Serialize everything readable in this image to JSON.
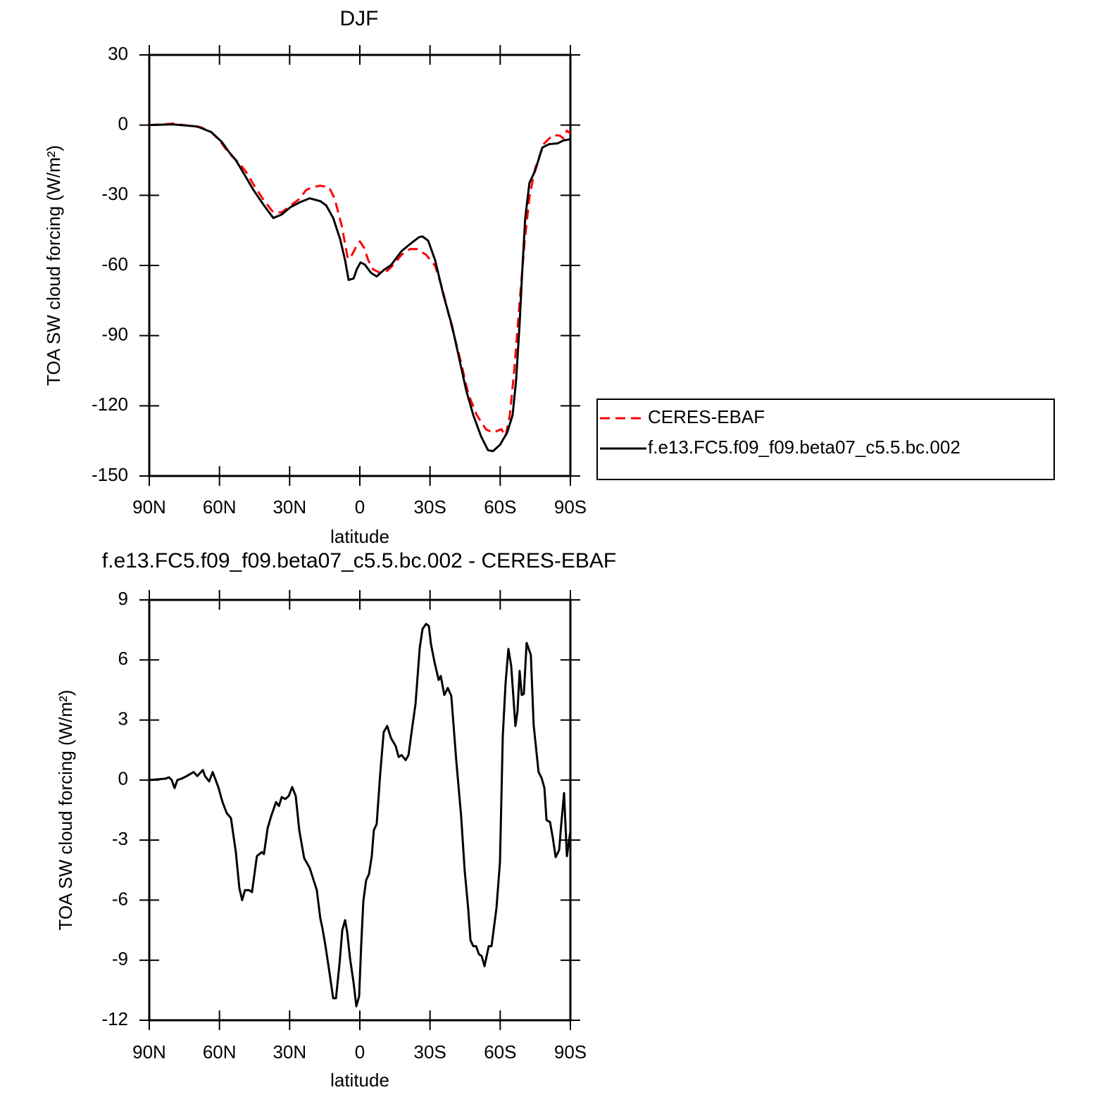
{
  "chart_data": [
    {
      "type": "line",
      "title": "DJF",
      "xlabel": "latitude",
      "ylabel": "TOA SW cloud forcing (W/m²)",
      "xlim": [
        90,
        -90
      ],
      "ylim": [
        -150,
        30
      ],
      "xticks": [
        {
          "value": 90,
          "label": "90N"
        },
        {
          "value": 60,
          "label": "60N"
        },
        {
          "value": 30,
          "label": "30N"
        },
        0,
        {
          "value": -30,
          "label": "30S"
        },
        {
          "value": -60,
          "label": "60S"
        },
        {
          "value": -90,
          "label": "90S"
        }
      ],
      "yticks": [
        -150,
        -120,
        -90,
        -60,
        -30,
        0,
        30
      ],
      "legend": "right",
      "series": [
        {
          "name": "CERES-EBAF",
          "color": "#ff0000",
          "dashed": true,
          "x": [
            90,
            80,
            68,
            63.5,
            59.9,
            56,
            51.5,
            48.5,
            45.5,
            41,
            37,
            33.4,
            29.5,
            25.9,
            22.9,
            19.9,
            16.9,
            13.2,
            10.8,
            7.8,
            5.1,
            3.3,
            1.5,
            0,
            -1.8,
            -3.6,
            -5.7,
            -8.7,
            -11.7,
            -14.8,
            -17.8,
            -21.4,
            -24.4,
            -28.3,
            -32.2,
            -35.2,
            -38.8,
            -42.5,
            -46.4,
            -50,
            -53.9,
            -56.9,
            -60.5,
            -62.3,
            -64.1,
            -65.9,
            -68.3,
            -70.4,
            -72.5,
            -74.9,
            -78.6,
            -82.5,
            -85.5,
            -87,
            -88.5,
            -90
          ],
          "values": [
            0,
            0.6,
            -0.9,
            -3,
            -6.6,
            -12,
            -16.3,
            -20.2,
            -25.3,
            -32.2,
            -37.3,
            -37.3,
            -34.3,
            -31.6,
            -27.7,
            -26.5,
            -25.9,
            -26.5,
            -31.3,
            -42.8,
            -57.2,
            -55.4,
            -51.8,
            -49.7,
            -52.4,
            -57.8,
            -61.7,
            -63.2,
            -62.3,
            -59.3,
            -55.4,
            -53,
            -53,
            -55.4,
            -60.2,
            -69.8,
            -84.3,
            -98.4,
            -115,
            -124,
            -130,
            -131.5,
            -130,
            -133,
            -124,
            -106,
            -75.8,
            -50.3,
            -30.7,
            -18.7,
            -8.1,
            -4.2,
            -4.5,
            -5.7,
            -2.4,
            -3.6
          ]
        },
        {
          "name": "f.e13.FC5.f09_f09.beta07_c5.5.bc.002",
          "color": "#000000",
          "dashed": false,
          "x": [
            90,
            80,
            69.5,
            63.5,
            59,
            56,
            53,
            50,
            45.5,
            41,
            37,
            33.4,
            29.8,
            25.9,
            21.4,
            16.9,
            14.4,
            11.4,
            8.4,
            6.3,
            4.8,
            2.7,
            1.2,
            -0.3,
            -2.1,
            -4.8,
            -7.2,
            -10.2,
            -13.3,
            -17.8,
            -21.4,
            -25.3,
            -26.8,
            -29.2,
            -32.2,
            -35.8,
            -39.4,
            -42.5,
            -45.5,
            -48.5,
            -51.8,
            -54.8,
            -56.9,
            -59.9,
            -62.9,
            -65.3,
            -66.8,
            -68.3,
            -69.5,
            -70.7,
            -72.5,
            -74.9,
            -78,
            -81,
            -84.6,
            -87,
            -90
          ],
          "values": [
            0,
            0.3,
            -0.6,
            -3,
            -7.2,
            -11.4,
            -15,
            -20,
            -27.7,
            -34.3,
            -39.7,
            -38.2,
            -35.2,
            -33.1,
            -31.3,
            -32.5,
            -34.3,
            -39.7,
            -48.8,
            -57.8,
            -66.2,
            -65.6,
            -61.4,
            -58.7,
            -59.6,
            -63.2,
            -64.7,
            -62,
            -59.9,
            -53.9,
            -50.9,
            -47.9,
            -47.6,
            -49.4,
            -57.8,
            -72.9,
            -85.8,
            -99.9,
            -113.5,
            -124,
            -133,
            -139,
            -139.4,
            -136.7,
            -131.6,
            -124,
            -109,
            -84.9,
            -60.8,
            -39.7,
            -24.7,
            -19.6,
            -9.6,
            -8.1,
            -7.8,
            -6.6,
            -6
          ]
        }
      ]
    },
    {
      "type": "line",
      "title": "f.e13.FC5.f09_f09.beta07_c5.5.bc.002 - CERES-EBAF",
      "xlabel": "latitude",
      "ylabel": "TOA SW cloud forcing (W/m²)",
      "xlim": [
        90,
        -90
      ],
      "ylim": [
        -12,
        9
      ],
      "xticks": [
        {
          "value": 90,
          "label": "90N"
        },
        {
          "value": 60,
          "label": "60N"
        },
        {
          "value": 30,
          "label": "30N"
        },
        0,
        {
          "value": -30,
          "label": "30S"
        },
        {
          "value": -60,
          "label": "60S"
        },
        {
          "value": -90,
          "label": "90S"
        }
      ],
      "yticks": [
        -12,
        -9,
        -6,
        -3,
        0,
        3,
        6,
        9
      ],
      "series": [
        {
          "color": "#000000",
          "dashed": false,
          "x": [
            90,
            83,
            81.6,
            80.4,
            79.2,
            78,
            76.2,
            74,
            71,
            69.5,
            67.1,
            66.2,
            64.4,
            62.9,
            60.5,
            58.7,
            56.9,
            55.1,
            53,
            51.5,
            50.3,
            49.1,
            47.3,
            46.1,
            44,
            41.9,
            41,
            39.4,
            37.9,
            35.8,
            34.6,
            33.4,
            31.9,
            30.4,
            28.9,
            27.4,
            25.9,
            23.8,
            21.4,
            18.4,
            16.9,
            16,
            14.8,
            13,
            11.4,
            10.2,
            8.7,
            7.5,
            6.3,
            5.4,
            4.2,
            2.7,
            1.5,
            0.3,
            -0.6,
            -1.5,
            -2.7,
            -3.9,
            -5.1,
            -6,
            -7.2,
            -8.7,
            -10.2,
            -11.7,
            -13.3,
            -15.3,
            -16.6,
            -17.8,
            -19.6,
            -20.8,
            -22.3,
            -23.8,
            -25.6,
            -26.8,
            -28.3,
            -29.5,
            -30.4,
            -31.9,
            -33.7,
            -34.6,
            -36.1,
            -37.6,
            -39.1,
            -41.2,
            -43.3,
            -44.8,
            -46.3,
            -47.3,
            -48.5,
            -49.7,
            -50.9,
            -52.1,
            -53.3,
            -55.1,
            -56.3,
            -58.4,
            -59.9,
            -61.1,
            -62.3,
            -63.5,
            -64.7,
            -66.5,
            -67.4,
            -68.3,
            -69.2,
            -70.1,
            -71.3,
            -73.1,
            -74.3,
            -76.4,
            -77.7,
            -78.9,
            -79.8,
            -81.3,
            -82.5,
            -83.7,
            -85.2,
            -86.1,
            -87.3,
            -88.5,
            -90
          ],
          "values": [
            0,
            0.07,
            0.14,
            0,
            -0.4,
            0,
            0.07,
            0.2,
            0.4,
            0.2,
            0.5,
            0.2,
            -0.07,
            0.4,
            -0.35,
            -1.1,
            -1.65,
            -1.9,
            -3.6,
            -5.4,
            -6,
            -5.5,
            -5.5,
            -5.6,
            -3.8,
            -3.6,
            -3.7,
            -2.4,
            -1.8,
            -1.1,
            -1.3,
            -0.85,
            -0.95,
            -0.8,
            -0.35,
            -0.8,
            -2.5,
            -3.9,
            -4.4,
            -5.5,
            -6.9,
            -7.4,
            -8.2,
            -9.6,
            -10.9,
            -10.9,
            -9.2,
            -7.5,
            -7,
            -7.6,
            -8.9,
            -10.1,
            -11.3,
            -10.8,
            -8.2,
            -6.05,
            -5,
            -4.7,
            -3.8,
            -2.5,
            -2.2,
            0.3,
            2.4,
            2.7,
            2.1,
            1.7,
            1.15,
            1.25,
            1,
            1.25,
            2.55,
            3.8,
            6.6,
            7.55,
            7.8,
            7.7,
            6.8,
            5.9,
            5,
            5.2,
            4.25,
            4.6,
            4.2,
            1,
            -1.8,
            -4.5,
            -6.4,
            -8,
            -8.3,
            -8.3,
            -8.7,
            -8.8,
            -9.3,
            -8.3,
            -8.3,
            -6.4,
            -4.1,
            2.2,
            4.85,
            6.55,
            5.7,
            2.7,
            3.45,
            5.45,
            4.25,
            4.3,
            6.85,
            6.25,
            2.75,
            0.4,
            0.1,
            -0.4,
            -2,
            -2.1,
            -2.9,
            -3.85,
            -3.5,
            -2.2,
            -0.65,
            -3.8,
            -2.55
          ]
        }
      ]
    }
  ]
}
